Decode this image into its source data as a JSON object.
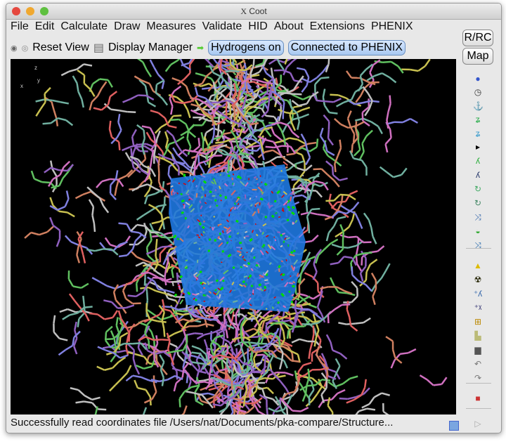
{
  "window": {
    "title": "Coot",
    "title_icon": "X"
  },
  "menu": [
    "File",
    "Edit",
    "Calculate",
    "Draw",
    "Measures",
    "Validate",
    "HID",
    "About",
    "Extensions",
    "PHENIX"
  ],
  "toolbar": {
    "reset_view": "Reset View",
    "display_manager": "Display Manager",
    "hydrogens": "Hydrogens on",
    "phenix": "Connected to PHENIX"
  },
  "side_buttons": {
    "rrc": "R/RC",
    "map": "Map"
  },
  "side_icons": [
    "rotate-icon",
    "clock-icon",
    "anchor-icon",
    "chain-icon",
    "chain-refine-icon",
    "arrow-right-icon",
    "green-residue-icon",
    "blue-residue-icon",
    "rotamer-icon",
    "rotamer-2-icon",
    "flip-icon",
    "side-by-side-icon",
    "torsion-icon",
    "hazard-icon",
    "radioactive-icon",
    "add-residue-icon",
    "add-atom-icon",
    "plus-box-icon",
    "stamp-icon",
    "trash-icon",
    "undo-icon",
    "redo-icon",
    "flag-icon",
    "play-icon"
  ],
  "axes": {
    "z": "z",
    "x": "x",
    "y": "y"
  },
  "status": "Successfully read coordinates file /Users/nat/Documents/pka-compare/Structure...",
  "colors": {
    "map": "#1e78e0",
    "diff_pos": "#00dd00",
    "diff_neg": "#dd0000"
  }
}
